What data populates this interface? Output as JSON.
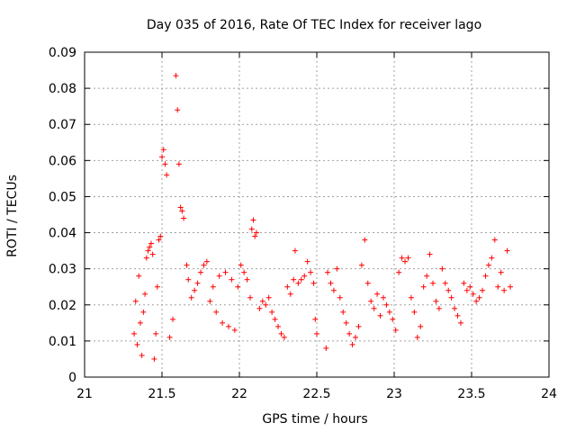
{
  "chart_data": {
    "type": "scatter",
    "title": "Day 035 of 2016, Rate Of TEC Index for receiver lago",
    "xlabel": "GPS time / hours",
    "ylabel": "ROTI / TECUs",
    "xlim": [
      21,
      24
    ],
    "ylim": [
      0,
      0.09
    ],
    "xticks": [
      21,
      21.5,
      22,
      22.5,
      23,
      23.5,
      24
    ],
    "xtick_labels": [
      "21",
      "21.5",
      "22",
      "22.5",
      "23",
      "23.5",
      "24"
    ],
    "yticks": [
      0,
      0.01,
      0.02,
      0.03,
      0.04,
      0.05,
      0.06,
      0.07,
      0.08,
      0.09
    ],
    "ytick_labels": [
      "0",
      "0.01",
      "0.02",
      "0.03",
      "0.04",
      "0.05",
      "0.06",
      "0.07",
      "0.08",
      "0.09"
    ],
    "grid": true,
    "marker": "+",
    "color": "#ff0000",
    "series": [
      {
        "name": "ROTI",
        "points": [
          [
            21.32,
            0.012
          ],
          [
            21.33,
            0.021
          ],
          [
            21.34,
            0.009
          ],
          [
            21.35,
            0.028
          ],
          [
            21.36,
            0.015
          ],
          [
            21.37,
            0.006
          ],
          [
            21.38,
            0.018
          ],
          [
            21.39,
            0.023
          ],
          [
            21.4,
            0.033
          ],
          [
            21.41,
            0.035
          ],
          [
            21.42,
            0.036
          ],
          [
            21.43,
            0.037
          ],
          [
            21.44,
            0.034
          ],
          [
            21.45,
            0.005
          ],
          [
            21.46,
            0.012
          ],
          [
            21.47,
            0.025
          ],
          [
            21.48,
            0.038
          ],
          [
            21.49,
            0.039
          ],
          [
            21.5,
            0.061
          ],
          [
            21.51,
            0.063
          ],
          [
            21.52,
            0.059
          ],
          [
            21.53,
            0.056
          ],
          [
            21.55,
            0.011
          ],
          [
            21.57,
            0.016
          ],
          [
            21.59,
            0.0835
          ],
          [
            21.6,
            0.074
          ],
          [
            21.61,
            0.059
          ],
          [
            21.62,
            0.047
          ],
          [
            21.63,
            0.046
          ],
          [
            21.64,
            0.044
          ],
          [
            21.66,
            0.031
          ],
          [
            21.67,
            0.027
          ],
          [
            21.69,
            0.022
          ],
          [
            21.71,
            0.024
          ],
          [
            21.73,
            0.026
          ],
          [
            21.75,
            0.029
          ],
          [
            21.77,
            0.031
          ],
          [
            21.79,
            0.032
          ],
          [
            21.81,
            0.021
          ],
          [
            21.83,
            0.025
          ],
          [
            21.85,
            0.018
          ],
          [
            21.87,
            0.028
          ],
          [
            21.89,
            0.015
          ],
          [
            21.91,
            0.029
          ],
          [
            21.93,
            0.014
          ],
          [
            21.95,
            0.027
          ],
          [
            21.97,
            0.013
          ],
          [
            21.99,
            0.025
          ],
          [
            22.01,
            0.031
          ],
          [
            22.03,
            0.029
          ],
          [
            22.05,
            0.027
          ],
          [
            22.07,
            0.022
          ],
          [
            22.08,
            0.041
          ],
          [
            22.09,
            0.0435
          ],
          [
            22.1,
            0.039
          ],
          [
            22.11,
            0.04
          ],
          [
            22.13,
            0.019
          ],
          [
            22.15,
            0.021
          ],
          [
            22.17,
            0.02
          ],
          [
            22.19,
            0.022
          ],
          [
            22.21,
            0.018
          ],
          [
            22.23,
            0.016
          ],
          [
            22.25,
            0.014
          ],
          [
            22.27,
            0.012
          ],
          [
            22.29,
            0.011
          ],
          [
            22.31,
            0.025
          ],
          [
            22.33,
            0.023
          ],
          [
            22.35,
            0.027
          ],
          [
            22.36,
            0.035
          ],
          [
            22.38,
            0.026
          ],
          [
            22.4,
            0.027
          ],
          [
            22.42,
            0.028
          ],
          [
            22.44,
            0.032
          ],
          [
            22.46,
            0.029
          ],
          [
            22.48,
            0.026
          ],
          [
            22.49,
            0.016
          ],
          [
            22.5,
            0.012
          ],
          [
            22.56,
            0.008
          ],
          [
            22.57,
            0.029
          ],
          [
            22.59,
            0.026
          ],
          [
            22.61,
            0.024
          ],
          [
            22.63,
            0.03
          ],
          [
            22.65,
            0.022
          ],
          [
            22.67,
            0.018
          ],
          [
            22.69,
            0.015
          ],
          [
            22.71,
            0.012
          ],
          [
            22.73,
            0.009
          ],
          [
            22.75,
            0.011
          ],
          [
            22.77,
            0.014
          ],
          [
            22.79,
            0.031
          ],
          [
            22.81,
            0.038
          ],
          [
            22.83,
            0.026
          ],
          [
            22.85,
            0.021
          ],
          [
            22.87,
            0.019
          ],
          [
            22.89,
            0.023
          ],
          [
            22.91,
            0.017
          ],
          [
            22.93,
            0.022
          ],
          [
            22.95,
            0.02
          ],
          [
            22.97,
            0.018
          ],
          [
            22.99,
            0.016
          ],
          [
            23.01,
            0.013
          ],
          [
            23.03,
            0.029
          ],
          [
            23.05,
            0.033
          ],
          [
            23.07,
            0.032
          ],
          [
            23.09,
            0.033
          ],
          [
            23.11,
            0.022
          ],
          [
            23.13,
            0.018
          ],
          [
            23.15,
            0.011
          ],
          [
            23.17,
            0.014
          ],
          [
            23.19,
            0.025
          ],
          [
            23.21,
            0.028
          ],
          [
            23.23,
            0.034
          ],
          [
            23.25,
            0.026
          ],
          [
            23.27,
            0.021
          ],
          [
            23.29,
            0.019
          ],
          [
            23.31,
            0.03
          ],
          [
            23.33,
            0.026
          ],
          [
            23.35,
            0.024
          ],
          [
            23.37,
            0.022
          ],
          [
            23.39,
            0.019
          ],
          [
            23.41,
            0.017
          ],
          [
            23.43,
            0.015
          ],
          [
            23.45,
            0.026
          ],
          [
            23.47,
            0.024
          ],
          [
            23.49,
            0.025
          ],
          [
            23.51,
            0.023
          ],
          [
            23.53,
            0.021
          ],
          [
            23.55,
            0.022
          ],
          [
            23.57,
            0.024
          ],
          [
            23.59,
            0.028
          ],
          [
            23.61,
            0.031
          ],
          [
            23.63,
            0.033
          ],
          [
            23.65,
            0.038
          ],
          [
            23.67,
            0.025
          ],
          [
            23.69,
            0.029
          ],
          [
            23.71,
            0.024
          ],
          [
            23.73,
            0.035
          ],
          [
            23.75,
            0.025
          ]
        ]
      }
    ]
  }
}
